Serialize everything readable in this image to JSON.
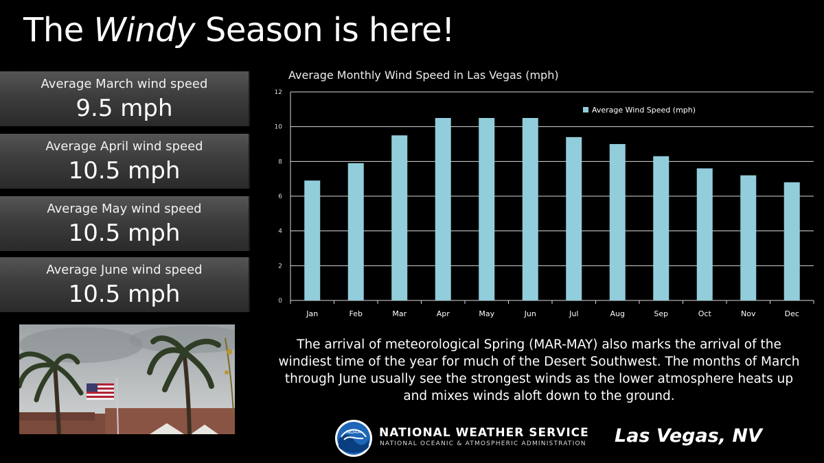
{
  "header": {
    "title_prefix": "The",
    "title_emphasis": "Windy",
    "title_suffix": "Season is here!"
  },
  "stats": [
    {
      "label": "Average March wind speed",
      "value": "9.5 mph"
    },
    {
      "label": "Average April wind speed",
      "value": "10.5 mph"
    },
    {
      "label": "Average May wind speed",
      "value": "10.5 mph"
    },
    {
      "label": "Average June wind speed",
      "value": "10.5 mph"
    }
  ],
  "chart_data": {
    "type": "bar",
    "title": "Average Monthly Wind Speed in Las Vegas (mph)",
    "categories": [
      "Jan",
      "Feb",
      "Mar",
      "Apr",
      "May",
      "Jun",
      "Jul",
      "Aug",
      "Sep",
      "Oct",
      "Nov",
      "Dec"
    ],
    "series": [
      {
        "name": "Average Wind Speed (mph)",
        "values": [
          6.9,
          7.9,
          9.5,
          10.5,
          10.5,
          10.5,
          9.4,
          9.0,
          8.3,
          7.6,
          7.2,
          6.8
        ]
      }
    ],
    "ylim": [
      0,
      12
    ],
    "yticks": [
      0,
      2,
      4,
      6,
      8,
      10,
      12
    ],
    "grid": true,
    "legend": "top-right",
    "bar_color": "#92cddc",
    "xlabel": "",
    "ylabel": ""
  },
  "description": "The arrival of meteorological Spring (MAR-MAY) also marks the arrival of the windiest time of the year for much of the Desert Southwest.  The months of March through June usually see the strongest winds as the lower atmosphere heats up and mixes winds aloft down to the ground.",
  "footer": {
    "logo_text": "NOAA",
    "agency": "NATIONAL WEATHER SERVICE",
    "agency_sub": "NATIONAL OCEANIC & ATMOSPHERIC ADMINISTRATION",
    "location": "Las Vegas, NV"
  }
}
